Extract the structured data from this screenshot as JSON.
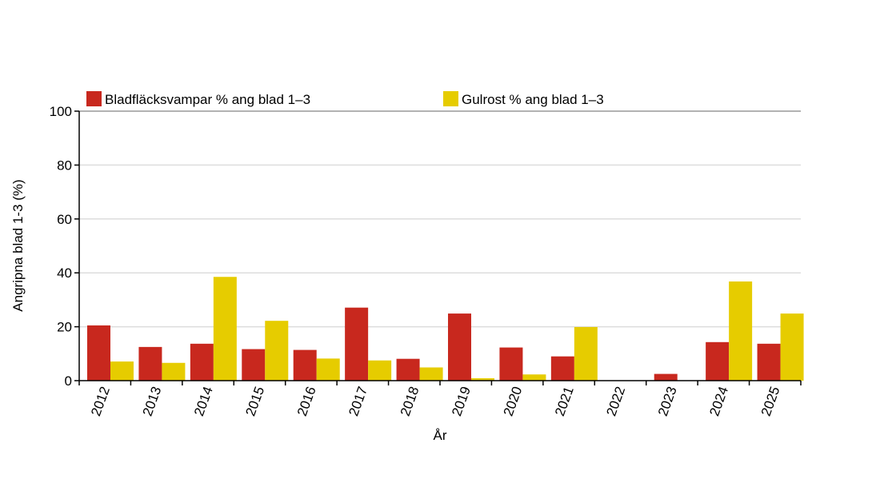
{
  "chart_data": {
    "type": "bar",
    "title": "",
    "xlabel": "År",
    "ylabel": "Angripna blad 1-3 (%)",
    "ylim": [
      0,
      100
    ],
    "yticks": [
      0,
      20,
      40,
      60,
      80,
      100
    ],
    "grid": true,
    "legend_position": "top",
    "categories": [
      "2012",
      "2013",
      "2014",
      "2015",
      "2016",
      "2017",
      "2018",
      "2019",
      "2020",
      "2021",
      "2022",
      "2023",
      "2024",
      "2025"
    ],
    "series": [
      {
        "name": "Bladfläcksvampar % ang blad 1–3",
        "color": "#c8281e",
        "values": [
          20.5,
          12.5,
          13.7,
          11.7,
          11.4,
          27.1,
          8.1,
          24.9,
          12.3,
          9.0,
          0,
          2.5,
          14.3,
          13.7
        ]
      },
      {
        "name": "Gulrost % ang blad 1–3",
        "color": "#e6cc00",
        "values": [
          7.1,
          6.6,
          38.5,
          22.2,
          8.2,
          7.5,
          4.9,
          0.9,
          2.3,
          19.9,
          0,
          0,
          36.8,
          24.9
        ]
      }
    ]
  }
}
